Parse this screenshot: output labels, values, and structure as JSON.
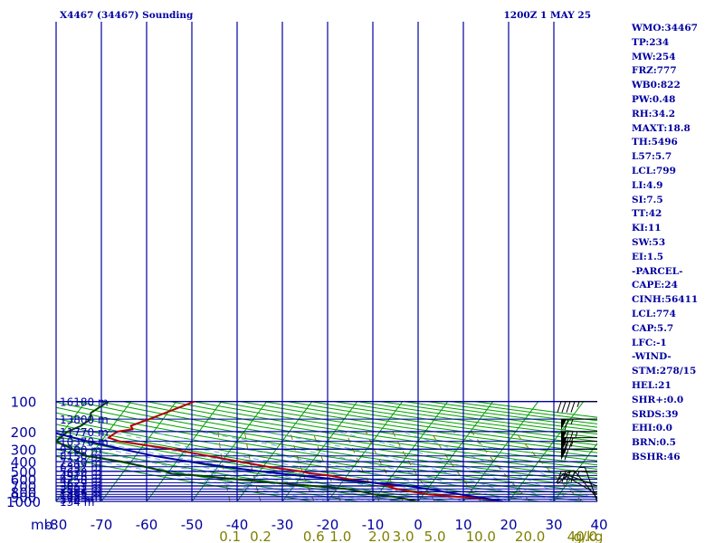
{
  "title_left": "X4467 (34467) Sounding",
  "title_right": "1200Z  1 MAY 25",
  "pressure_unit": "mb",
  "mixing_ratio_unit": "g/kg",
  "stats": [
    "WMO:34467",
    "TP:234",
    "MW:254",
    "FRZ:777",
    "WB0:822",
    "PW:0.48",
    "RH:34.2",
    "MAXT:18.8",
    "TH:5496",
    "L57:5.7",
    "LCL:799",
    "LI:4.9",
    "SI:7.5",
    "TT:42",
    "KI:11",
    "SW:53",
    "EI:1.5",
    "-PARCEL-",
    "CAPE:24",
    "CINH:56411",
    "LCL:774",
    "CAP:5.7",
    "LFC:-1",
    "-WIND-",
    "STM:278/15",
    "HEL:21",
    "SHR+:0.0",
    "SRDS:39",
    "EHI:0.0",
    "BRN:0.5",
    "BSHR:46"
  ],
  "colors": {
    "grid": "#0000a0",
    "isotherm": "#00a000",
    "dry_adiabat": "#00a000",
    "moist_adiabat": "#6fa8dc",
    "mixing_ratio": "#808000",
    "temperature": "#b00000",
    "dewpoint": "#004000",
    "parcel": "#0000a0",
    "wind": "#000000"
  },
  "chart_data": {
    "type": "skew-t",
    "title": "X4467 (34467) Sounding",
    "pressure_levels": [
      100,
      200,
      300,
      400,
      500,
      600,
      700,
      800,
      900,
      1000
    ],
    "pressure_labels": [
      "100",
      "200",
      "300",
      "400",
      "500",
      "600",
      "700",
      "800",
      "900",
      "1000"
    ],
    "temperature_ticks": [
      -80,
      -70,
      -60,
      -50,
      -40,
      -30,
      -20,
      -10,
      0,
      10,
      20,
      30,
      40
    ],
    "temperature_labels": [
      "-80",
      "-70",
      "-60",
      "-50",
      "-40",
      "-30",
      "-20",
      "-10",
      "0",
      "10",
      "20",
      "30",
      "40"
    ],
    "height_labels": [
      {
        "p": 100,
        "label": "16180 m"
      },
      {
        "p": 150,
        "label": "13800 m"
      },
      {
        "p": 200,
        "label": "11770 m"
      },
      {
        "p": 250,
        "label": "10370 m"
      },
      {
        "p": 300,
        "label": "9200 m"
      },
      {
        "p": 350,
        "label": "8150 m"
      },
      {
        "p": 400,
        "label": "7240 m"
      },
      {
        "p": 450,
        "label": "6392 m"
      },
      {
        "p": 500,
        "label": "5630 m"
      },
      {
        "p": 550,
        "label": "4916 m"
      },
      {
        "p": 600,
        "label": "4250 m"
      },
      {
        "p": 650,
        "label": "3629 m"
      },
      {
        "p": 700,
        "label": "3051 m"
      },
      {
        "p": 750,
        "label": "2502 m"
      },
      {
        "p": 800,
        "label": "1986 m"
      },
      {
        "p": 850,
        "label": "1493 m"
      },
      {
        "p": 900,
        "label": "1023 m"
      },
      {
        "p": 950,
        "label": "570 m"
      },
      {
        "p": 1000,
        "label": "134 m"
      }
    ],
    "mixing_ratio_labels": [
      "0.1",
      "0.2",
      "0.6",
      "1.0",
      "2.0",
      "3.0",
      "5.0",
      "10.0",
      "20.0",
      "40.0"
    ],
    "mixing_ratio_values": [
      0.1,
      0.2,
      0.6,
      1.0,
      2.0,
      3.0,
      5.0,
      10.0,
      20.0,
      40.0
    ],
    "series": [
      {
        "key": "temperature",
        "points": [
          [
            100,
            -66
          ],
          [
            150,
            -73
          ],
          [
            175,
            -76
          ],
          [
            190,
            -75
          ],
          [
            200,
            -78
          ],
          [
            230,
            -79
          ],
          [
            250,
            -76
          ],
          [
            300,
            -63
          ],
          [
            350,
            -54
          ],
          [
            400,
            -46
          ],
          [
            450,
            -39
          ],
          [
            500,
            -31
          ],
          [
            520,
            -29
          ],
          [
            550,
            -24
          ],
          [
            600,
            -19
          ],
          [
            650,
            -13
          ],
          [
            700,
            -8
          ],
          [
            710,
            -9
          ],
          [
            750,
            -7
          ],
          [
            800,
            -3
          ],
          [
            850,
            1
          ],
          [
            900,
            8
          ],
          [
            930,
            13
          ],
          [
            1000,
            18.8
          ]
        ]
      },
      {
        "key": "dewpoint",
        "points": [
          [
            100,
            -85
          ],
          [
            130,
            -87
          ],
          [
            150,
            -86
          ],
          [
            175,
            -87
          ],
          [
            200,
            -89
          ],
          [
            250,
            -90
          ],
          [
            300,
            -85
          ],
          [
            350,
            -81
          ],
          [
            400,
            -72
          ],
          [
            500,
            -61
          ],
          [
            530,
            -59
          ],
          [
            550,
            -53
          ],
          [
            600,
            -44
          ],
          [
            650,
            -35
          ],
          [
            700,
            -26
          ],
          [
            750,
            -18
          ],
          [
            800,
            -14
          ],
          [
            850,
            -11
          ],
          [
            900,
            -6
          ],
          [
            950,
            -3
          ],
          [
            1000,
            0
          ]
        ]
      },
      {
        "key": "parcel",
        "points": [
          [
            200,
            -93
          ],
          [
            250,
            -83
          ],
          [
            300,
            -74
          ],
          [
            350,
            -66
          ],
          [
            400,
            -57
          ],
          [
            450,
            -48.5
          ],
          [
            500,
            -40
          ],
          [
            550,
            -31
          ],
          [
            600,
            -22
          ],
          [
            650,
            -13
          ],
          [
            700,
            -5
          ],
          [
            750,
            0
          ],
          [
            774,
            2.5
          ],
          [
            800,
            4
          ],
          [
            850,
            8
          ],
          [
            900,
            12
          ],
          [
            950,
            15.5
          ],
          [
            1000,
            18.8
          ]
        ]
      }
    ],
    "winds": [
      {
        "p": 100,
        "dir": 270,
        "speed": 45
      },
      {
        "p": 150,
        "dir": 270,
        "speed": 65
      },
      {
        "p": 200,
        "dir": 270,
        "speed": 75
      },
      {
        "p": 230,
        "dir": 270,
        "speed": 70
      },
      {
        "p": 250,
        "dir": 270,
        "speed": 65
      },
      {
        "p": 300,
        "dir": 270,
        "speed": 60
      },
      {
        "p": 500,
        "dir": 270,
        "speed": 45
      },
      {
        "p": 700,
        "dir": 250,
        "speed": 15
      },
      {
        "p": 850,
        "dir": 240,
        "speed": 10
      },
      {
        "p": 930,
        "dir": 220,
        "speed": 10
      },
      {
        "p": 1000,
        "dir": 200,
        "speed": 5
      }
    ]
  }
}
